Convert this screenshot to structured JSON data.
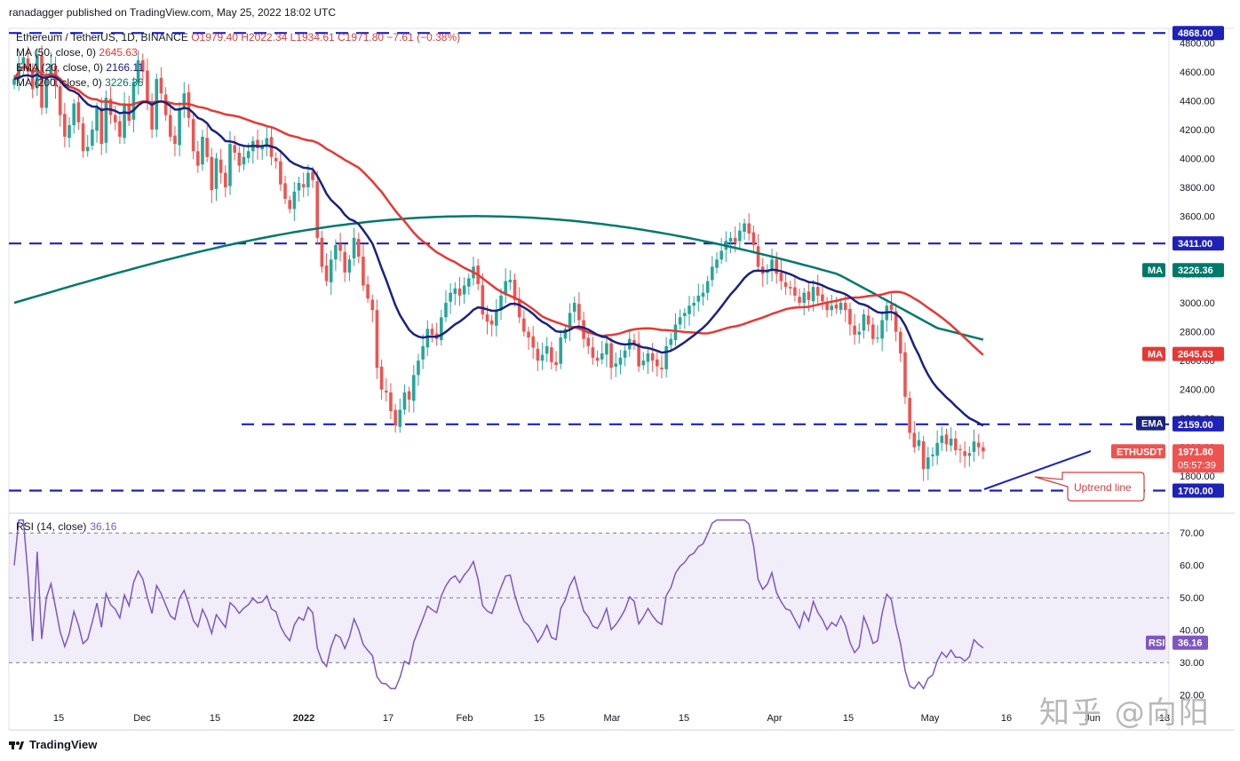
{
  "publish_note": "ranadagger published on TradingView.com, May 25, 2022 18:02 UTC",
  "legend": {
    "symbol": "Ethereum / TetherUS, 1D, BINANCE",
    "ohlc": "O1979.40  H2022.34  L1934.61  C1971.80  −7.61 (−0.38%)",
    "ma50_label": "MA (50, close, 0)",
    "ma50_value": "2645.63",
    "ema20_label": "EMA (20, close, 0)",
    "ema20_value": "2166.11",
    "ma200_label": "MA (200, close, 0)",
    "ma200_value": "3226.36"
  },
  "rsi_legend": {
    "label": "RSI (14, close)",
    "value": "36.16"
  },
  "brand": "TradingView",
  "watermark": "知乎 @向阳",
  "colors": {
    "up": "#26a69a",
    "down": "#ef5350",
    "ma50": "#e53935",
    "ema20": "#1a237e",
    "ma200": "#00796b",
    "level": "#1e22b8",
    "rsi": "#7e57c2"
  },
  "chart_data": {
    "type": "candlestick",
    "title": "Ethereum / TetherUS, 1D, BINANCE",
    "currency": "USDT",
    "x_ticks": [
      "15",
      "Dec",
      "15",
      "2022",
      "17",
      "Feb",
      "15",
      "Mar",
      "15",
      "Apr",
      "15",
      "May",
      "16",
      "Jun",
      "13"
    ],
    "y_ticks": [
      "1800.00",
      "2000.00",
      "2200.00",
      "2400.00",
      "2600.00",
      "2800.00",
      "3000.00",
      "3200.00",
      "3400.00",
      "3600.00",
      "3800.00",
      "4000.00",
      "4200.00",
      "4400.00",
      "4600.00",
      "4800.00"
    ],
    "ylim": [
      1580,
      4900
    ],
    "price_labels": [
      {
        "text": "4868.00",
        "value": 4868,
        "color": "#1e22b8"
      },
      {
        "text": "3411.00",
        "value": 3411,
        "color": "#1e22b8"
      },
      {
        "text": "3226.36",
        "value": 3226.36,
        "color": "#00796b",
        "tag": "MA"
      },
      {
        "text": "2645.63",
        "value": 2645.63,
        "color": "#e53935",
        "tag": "MA"
      },
      {
        "text": "2166.11",
        "value": 2166.11,
        "color": "#1a237e",
        "tag": "EMA"
      },
      {
        "text": "2159.00",
        "value": 2159,
        "color": "#1e22b8"
      },
      {
        "text": "1971.80",
        "value": 1971.8,
        "color": "#ef5350",
        "tag": "ETHUSDT",
        "sub": "05:57:39"
      },
      {
        "text": "1700.00",
        "value": 1700,
        "color": "#1e22b8"
      }
    ],
    "horizontal_levels": [
      4868,
      3411,
      2159,
      1700
    ],
    "annotation": "Uptrend line",
    "closes": [
      4550,
      4650,
      4700,
      4600,
      4480,
      4720,
      4350,
      4560,
      4650,
      4500,
      4300,
      4150,
      4230,
      4380,
      4250,
      4050,
      4080,
      4200,
      4350,
      4100,
      4420,
      4300,
      4250,
      4150,
      4380,
      4260,
      4530,
      4680,
      4600,
      4400,
      4200,
      4550,
      4450,
      4300,
      4150,
      4100,
      4350,
      4450,
      4280,
      4050,
      3950,
      4150,
      4010,
      3780,
      4000,
      3900,
      3800,
      4100,
      4040,
      3950,
      4010,
      4050,
      4120,
      4070,
      4080,
      4140,
      4010,
      3980,
      3820,
      3720,
      3650,
      3770,
      3830,
      3800,
      3900,
      3850,
      3450,
      3250,
      3150,
      3300,
      3400,
      3360,
      3210,
      3300,
      3450,
      3320,
      3120,
      3030,
      2950,
      2550,
      2400,
      2380,
      2250,
      2150,
      2260,
      2380,
      2330,
      2500,
      2600,
      2700,
      2820,
      2780,
      2750,
      2900,
      3000,
      3070,
      3100,
      3050,
      3120,
      3170,
      3250,
      3130,
      2920,
      2870,
      2850,
      2950,
      3050,
      3150,
      3160,
      3020,
      2900,
      2800,
      2760,
      2690,
      2600,
      2640,
      2700,
      2590,
      2570,
      2760,
      2820,
      2930,
      3000,
      2880,
      2750,
      2700,
      2620,
      2600,
      2650,
      2720,
      2550,
      2580,
      2620,
      2670,
      2750,
      2720,
      2560,
      2600,
      2650,
      2600,
      2560,
      2540,
      2700,
      2750,
      2850,
      2900,
      2930,
      2980,
      3000,
      3050,
      3070,
      3150,
      3250,
      3300,
      3360,
      3430,
      3450,
      3420,
      3500,
      3550,
      3480,
      3400,
      3250,
      3200,
      3230,
      3300,
      3200,
      3150,
      3110,
      3100,
      3050,
      3000,
      3070,
      3020,
      3110,
      3050,
      3010,
      2950,
      2980,
      2960,
      3000,
      2950,
      2850,
      2780,
      2800,
      2920,
      2850,
      2750,
      2760,
      2880,
      2980,
      2950,
      2800,
      2650,
      2350,
      2100,
      2000,
      2050,
      1850,
      1930,
      1950,
      2030,
      2080,
      2020,
      2060,
      1980,
      1980,
      1940,
      1960,
      2040,
      2000,
      1971.8
    ],
    "series": [
      {
        "name": "MA (50, close, 0)",
        "last": 2645.63
      },
      {
        "name": "EMA (20, close, 0)",
        "last": 2166.11
      },
      {
        "name": "MA (200, close, 0)",
        "last": 3226.36
      },
      {
        "name": "RSI (14, close)",
        "last": 36.16
      }
    ],
    "rsi_ticks": [
      "20.00",
      "30.00",
      "40.00",
      "50.00",
      "60.00",
      "70.00"
    ],
    "rsi_band": [
      30,
      70
    ],
    "rsi_ylim": [
      18,
      75
    ]
  }
}
